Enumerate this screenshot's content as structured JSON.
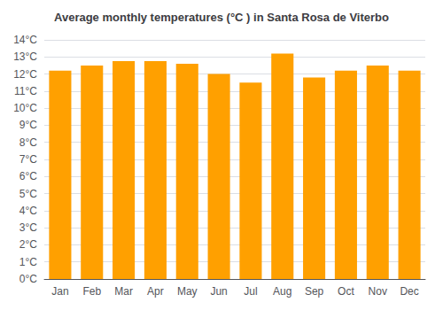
{
  "chart_data": {
    "type": "bar",
    "title": "Average monthly temperatures (°C ) in Santa Rosa de Viterbo",
    "categories": [
      "Jan",
      "Feb",
      "Mar",
      "Apr",
      "May",
      "Jun",
      "Jul",
      "Aug",
      "Sep",
      "Oct",
      "Nov",
      "Dec"
    ],
    "values": [
      12.2,
      12.5,
      12.75,
      12.75,
      12.6,
      12.0,
      11.5,
      13.2,
      11.8,
      12.2,
      12.5,
      12.2
    ],
    "color": "#FFA000",
    "ylim": [
      0,
      14
    ],
    "yticks": [
      {
        "value": 0,
        "label": "0°C"
      },
      {
        "value": 1,
        "label": "1°C"
      },
      {
        "value": 2,
        "label": "2°C"
      },
      {
        "value": 3,
        "label": "3°C"
      },
      {
        "value": 4,
        "label": "4°C"
      },
      {
        "value": 5,
        "label": "5°C"
      },
      {
        "value": 6,
        "label": "6°C"
      },
      {
        "value": 7,
        "label": "7°C"
      },
      {
        "value": 8,
        "label": "8°C"
      },
      {
        "value": 9,
        "label": "9°C"
      },
      {
        "value": 10,
        "label": "10°C"
      },
      {
        "value": 11,
        "label": "11°C"
      },
      {
        "value": 12,
        "label": "12°C"
      },
      {
        "value": 13,
        "label": "13°C"
      },
      {
        "value": 14,
        "label": "14°C"
      }
    ],
    "grid": true
  }
}
